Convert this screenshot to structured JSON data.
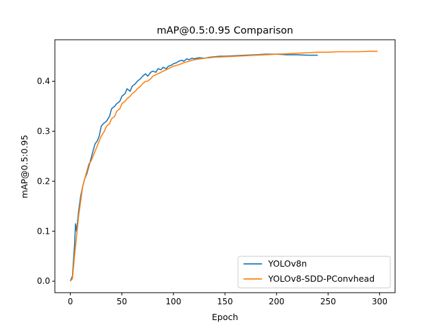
{
  "chart_data": {
    "type": "line",
    "title": "mAP@0.5:0.95 Comparison",
    "xlabel": "Epoch",
    "ylabel": "mAP@0.5:0.95",
    "xlim": [
      -15,
      315
    ],
    "ylim": [
      -0.023,
      0.483
    ],
    "xticks": [
      0,
      50,
      100,
      150,
      200,
      250,
      300
    ],
    "yticks": [
      0.0,
      0.1,
      0.2,
      0.3,
      0.4
    ],
    "ytick_labels": [
      "0.0",
      "0.1",
      "0.2",
      "0.3",
      "0.4"
    ],
    "grid": false,
    "legend_position": "lower-right",
    "series": [
      {
        "name": "YOLOv8n",
        "color": "#1f77b4",
        "x": [
          0,
          2,
          4,
          5,
          6,
          7,
          8,
          10,
          12,
          14,
          16,
          18,
          20,
          22,
          24,
          26,
          28,
          30,
          32,
          35,
          38,
          40,
          43,
          45,
          48,
          50,
          53,
          55,
          58,
          60,
          63,
          65,
          68,
          70,
          73,
          75,
          78,
          80,
          83,
          85,
          88,
          90,
          93,
          95,
          98,
          100,
          103,
          105,
          108,
          110,
          113,
          115,
          118,
          120,
          125,
          130,
          135,
          140,
          145,
          150,
          160,
          170,
          180,
          190,
          200,
          210,
          220,
          230,
          240
        ],
        "values": [
          0.0,
          0.01,
          0.07,
          0.115,
          0.1,
          0.12,
          0.14,
          0.17,
          0.19,
          0.205,
          0.215,
          0.23,
          0.245,
          0.26,
          0.275,
          0.28,
          0.29,
          0.31,
          0.315,
          0.32,
          0.33,
          0.345,
          0.35,
          0.355,
          0.36,
          0.37,
          0.375,
          0.385,
          0.38,
          0.39,
          0.395,
          0.4,
          0.405,
          0.41,
          0.415,
          0.41,
          0.418,
          0.42,
          0.418,
          0.425,
          0.423,
          0.428,
          0.425,
          0.43,
          0.432,
          0.435,
          0.437,
          0.44,
          0.442,
          0.44,
          0.445,
          0.443,
          0.446,
          0.445,
          0.447,
          0.446,
          0.448,
          0.449,
          0.45,
          0.45,
          0.451,
          0.452,
          0.453,
          0.454,
          0.454,
          0.453,
          0.453,
          0.452,
          0.452
        ]
      },
      {
        "name": "YOLOv8-SDD-PConvhead",
        "color": "#ff7f0e",
        "x": [
          0,
          2,
          4,
          6,
          8,
          10,
          12,
          14,
          16,
          18,
          20,
          22,
          25,
          28,
          30,
          33,
          35,
          38,
          40,
          43,
          45,
          48,
          50,
          53,
          55,
          58,
          60,
          63,
          65,
          68,
          70,
          73,
          75,
          78,
          80,
          85,
          90,
          95,
          100,
          105,
          110,
          115,
          120,
          130,
          140,
          150,
          160,
          170,
          180,
          190,
          200,
          210,
          220,
          230,
          240,
          250,
          260,
          270,
          280,
          290,
          298
        ],
        "values": [
          0.0,
          0.005,
          0.05,
          0.09,
          0.13,
          0.16,
          0.19,
          0.205,
          0.22,
          0.235,
          0.24,
          0.25,
          0.265,
          0.28,
          0.29,
          0.3,
          0.31,
          0.315,
          0.325,
          0.33,
          0.34,
          0.345,
          0.355,
          0.36,
          0.365,
          0.37,
          0.375,
          0.38,
          0.385,
          0.39,
          0.395,
          0.4,
          0.4,
          0.405,
          0.41,
          0.415,
          0.42,
          0.425,
          0.43,
          0.433,
          0.437,
          0.44,
          0.443,
          0.446,
          0.448,
          0.449,
          0.45,
          0.451,
          0.452,
          0.453,
          0.454,
          0.455,
          0.456,
          0.457,
          0.458,
          0.458,
          0.459,
          0.459,
          0.459,
          0.46,
          0.46
        ]
      }
    ]
  }
}
